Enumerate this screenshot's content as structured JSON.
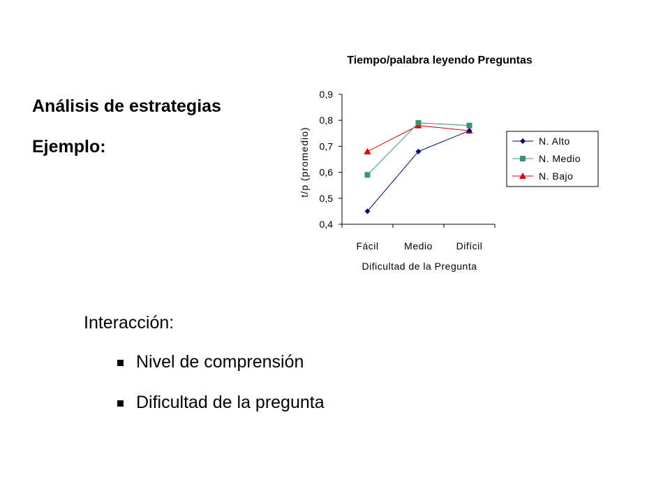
{
  "slide": {
    "heading_1": "Análisis de estrategias",
    "heading_2": "Ejemplo:",
    "intro": "Interacción:",
    "bullets": [
      "Nivel de comprensión",
      "Dificultad de la pregunta"
    ],
    "bullet_icon": "square-bullet-icon"
  },
  "chart_data": {
    "type": "line",
    "title": "Tiempo/palabra leyendo Preguntas",
    "xlabel": "Dificultad de la Pregunta",
    "ylabel": "t/p (promedio)",
    "categories": [
      "Fácil",
      "Medio",
      "Difícil"
    ],
    "ylim": [
      0.4,
      0.9
    ],
    "yticks": [
      0.4,
      0.5,
      0.6,
      0.7,
      0.8,
      0.9
    ],
    "ytick_labels": [
      "0,4",
      "0,5",
      "0,6",
      "0,7",
      "0,8",
      "0,9"
    ],
    "grid": false,
    "legend_position": "right",
    "series": [
      {
        "name": "N. Alto",
        "values": [
          0.45,
          0.68,
          0.76
        ],
        "color": "#000080",
        "marker": "diamond"
      },
      {
        "name": "N. Medio",
        "values": [
          0.59,
          0.79,
          0.78
        ],
        "color": "#339966",
        "marker": "square"
      },
      {
        "name": "N. Bajo",
        "values": [
          0.68,
          0.78,
          0.76
        ],
        "color": "#e00000",
        "marker": "triangle"
      }
    ]
  }
}
